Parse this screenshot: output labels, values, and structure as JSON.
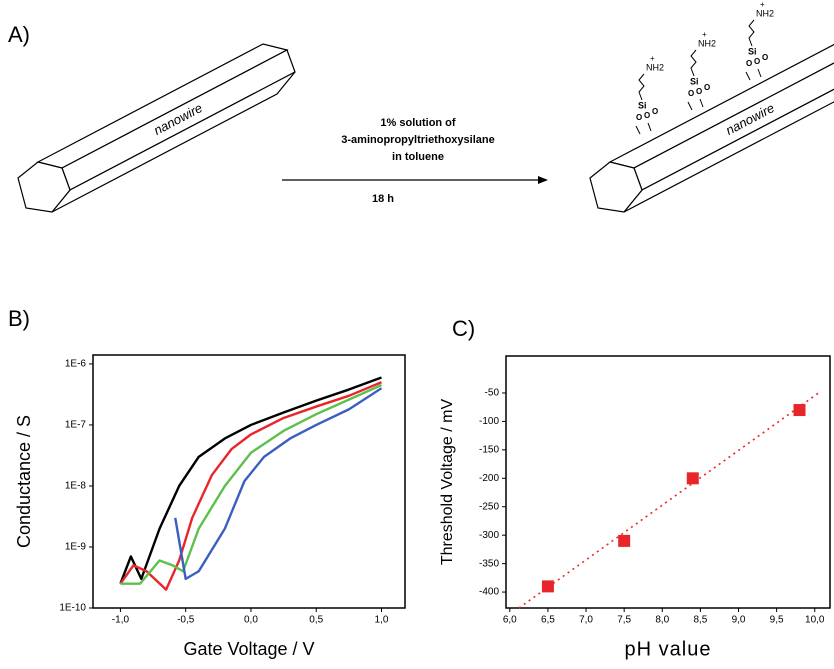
{
  "panel_a": {
    "label": "A)",
    "wire_label": "nanowire",
    "condition_lines": [
      "1% solution of",
      "3-aminopropyltriethoxysilane",
      "in toluene"
    ],
    "time": "18 h",
    "molecule": {
      "amine": "NH2",
      "charge": "+",
      "silicon": "Si",
      "oxygen": "O"
    }
  },
  "chart_data": [
    {
      "type": "line",
      "panel_label": "B)",
      "x_label": "Gate Voltage / V",
      "y_label": "Conductance / S",
      "log_y": true,
      "xlim": [
        -1.21,
        1.18
      ],
      "ylim": [
        1e-10,
        1.4e-06
      ],
      "xticks": [
        {
          "value": -1.0,
          "label": "-1,0"
        },
        {
          "value": -0.5,
          "label": "-0,5"
        },
        {
          "value": 0.0,
          "label": "0,0"
        },
        {
          "value": 0.5,
          "label": "0,5"
        },
        {
          "value": 1.0,
          "label": "1,0"
        }
      ],
      "yticks": [
        {
          "value": 1e-10,
          "label": "1E-10"
        },
        {
          "value": 1e-09,
          "label": "1E-9"
        },
        {
          "value": 1e-08,
          "label": "1E-8"
        },
        {
          "value": 1e-07,
          "label": "1E-7"
        },
        {
          "value": 1e-06,
          "label": "1E-6"
        }
      ],
      "series": [
        {
          "color": "#000000",
          "x": [
            -1.0,
            -0.92,
            -0.84,
            -0.7,
            -0.55,
            -0.4,
            -0.2,
            0,
            0.25,
            0.5,
            0.75,
            1.0
          ],
          "values": [
            2.5e-10,
            7e-10,
            3e-10,
            2e-09,
            1e-08,
            3e-08,
            6e-08,
            1e-07,
            1.6e-07,
            2.5e-07,
            3.8e-07,
            6e-07
          ]
        },
        {
          "color": "#e8262a",
          "x": [
            -1.0,
            -0.9,
            -0.8,
            -0.65,
            -0.55,
            -0.45,
            -0.3,
            -0.15,
            0,
            0.25,
            0.5,
            0.75,
            1.0
          ],
          "values": [
            2.5e-10,
            5e-10,
            4e-10,
            2e-10,
            6e-10,
            3e-09,
            1.5e-08,
            4e-08,
            7e-08,
            1.3e-07,
            2e-07,
            3e-07,
            5e-07
          ]
        },
        {
          "color": "#5cc04a",
          "x": [
            -1.0,
            -0.85,
            -0.7,
            -0.6,
            -0.52,
            -0.4,
            -0.2,
            0,
            0.25,
            0.5,
            0.75,
            1.0
          ],
          "values": [
            2.5e-10,
            2.5e-10,
            6e-10,
            5e-10,
            4e-10,
            2e-09,
            1e-08,
            3.5e-08,
            8e-08,
            1.5e-07,
            2.6e-07,
            4.5e-07
          ]
        },
        {
          "color": "#3a5fc0",
          "x": [
            -0.58,
            -0.5,
            -0.4,
            -0.2,
            -0.05,
            0.1,
            0.3,
            0.5,
            0.75,
            1.0
          ],
          "values": [
            3e-09,
            3e-10,
            4e-10,
            2e-09,
            1.2e-08,
            3e-08,
            6e-08,
            1e-07,
            1.8e-07,
            4e-07
          ]
        }
      ]
    },
    {
      "type": "scatter",
      "panel_label": "C)",
      "x_label": "pH value",
      "y_label": "Threshold Voltage / mV",
      "xlim": [
        5.95,
        10.2
      ],
      "ylim": [
        -428,
        15
      ],
      "xticks": [
        {
          "value": 6.0,
          "label": "6,0"
        },
        {
          "value": 6.5,
          "label": "6,5"
        },
        {
          "value": 7.0,
          "label": "7,0"
        },
        {
          "value": 7.5,
          "label": "7,5"
        },
        {
          "value": 8.0,
          "label": "8,0"
        },
        {
          "value": 8.5,
          "label": "8,5"
        },
        {
          "value": 9.0,
          "label": "9,0"
        },
        {
          "value": 9.5,
          "label": "9,5"
        },
        {
          "value": 10.0,
          "label": "10,0"
        }
      ],
      "yticks": [
        -400,
        -350,
        -300,
        -250,
        -200,
        -150,
        -100,
        -50
      ],
      "series": [
        {
          "color": "#e8262a",
          "marker": "square",
          "x": [
            6.5,
            7.5,
            8.4,
            9.8
          ],
          "values": [
            -390,
            -310,
            -200,
            -80
          ]
        },
        {
          "color": "#e8262a",
          "type": "line",
          "dotted": true,
          "x": [
            6.12,
            10.05
          ],
          "values": [
            -428,
            -50
          ]
        }
      ]
    }
  ]
}
